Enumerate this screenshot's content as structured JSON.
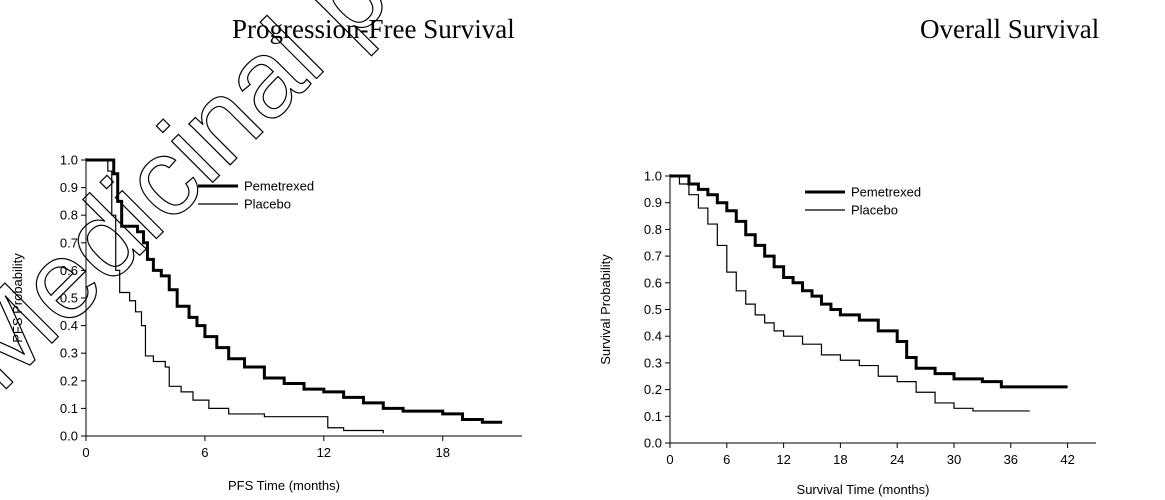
{
  "chart_data": [
    {
      "type": "line",
      "title": "Progression-Free Survival",
      "xlabel": "PFS Time (months)",
      "ylabel": "PFS Probability",
      "xlim": [
        0,
        22
      ],
      "ylim": [
        0,
        1
      ],
      "xticks": [
        0,
        6,
        12,
        18
      ],
      "yticks": [
        0.0,
        0.1,
        0.2,
        0.3,
        0.4,
        0.5,
        0.6,
        0.7,
        0.8,
        0.9,
        1.0
      ],
      "grid": false,
      "legend_position": "top-right",
      "series": [
        {
          "name": "Pemetrexed",
          "points": [
            [
              0,
              1.0
            ],
            [
              1.2,
              1.0
            ],
            [
              1.4,
              0.95
            ],
            [
              1.6,
              0.85
            ],
            [
              1.8,
              0.76
            ],
            [
              2.0,
              0.76
            ],
            [
              2.6,
              0.74
            ],
            [
              2.9,
              0.7
            ],
            [
              3.1,
              0.64
            ],
            [
              3.4,
              0.6
            ],
            [
              3.8,
              0.58
            ],
            [
              4.2,
              0.53
            ],
            [
              4.6,
              0.47
            ],
            [
              5.2,
              0.43
            ],
            [
              5.6,
              0.4
            ],
            [
              6.0,
              0.36
            ],
            [
              6.6,
              0.32
            ],
            [
              7.2,
              0.28
            ],
            [
              8.0,
              0.25
            ],
            [
              9.0,
              0.21
            ],
            [
              10.0,
              0.19
            ],
            [
              11.0,
              0.17
            ],
            [
              12.0,
              0.16
            ],
            [
              13.0,
              0.14
            ],
            [
              14.0,
              0.12
            ],
            [
              15.0,
              0.1
            ],
            [
              16.0,
              0.09
            ],
            [
              18.0,
              0.08
            ],
            [
              19.0,
              0.06
            ],
            [
              20.0,
              0.05
            ],
            [
              21.0,
              0.05
            ]
          ]
        },
        {
          "name": "Placebo",
          "points": [
            [
              0,
              1.0
            ],
            [
              1.1,
              0.96
            ],
            [
              1.3,
              0.8
            ],
            [
              1.5,
              0.6
            ],
            [
              1.7,
              0.52
            ],
            [
              2.2,
              0.49
            ],
            [
              2.5,
              0.45
            ],
            [
              2.8,
              0.4
            ],
            [
              3.0,
              0.29
            ],
            [
              3.4,
              0.27
            ],
            [
              4.0,
              0.25
            ],
            [
              4.2,
              0.18
            ],
            [
              4.8,
              0.16
            ],
            [
              5.4,
              0.13
            ],
            [
              6.2,
              0.1
            ],
            [
              7.2,
              0.08
            ],
            [
              9.0,
              0.07
            ],
            [
              12.0,
              0.07
            ],
            [
              12.2,
              0.03
            ],
            [
              13.0,
              0.02
            ],
            [
              15.0,
              0.01
            ]
          ]
        }
      ]
    },
    {
      "type": "line",
      "title": "Overall Survival",
      "xlabel": "Survival Time (months)",
      "ylabel": "Survival Probability",
      "xlim": [
        0,
        45
      ],
      "ylim": [
        0,
        1
      ],
      "xticks": [
        0,
        6,
        12,
        18,
        24,
        30,
        36,
        42
      ],
      "yticks": [
        0.0,
        0.1,
        0.2,
        0.3,
        0.4,
        0.5,
        0.6,
        0.7,
        0.8,
        0.9,
        1.0
      ],
      "grid": false,
      "legend_position": "top-right",
      "series": [
        {
          "name": "Pemetrexed",
          "points": [
            [
              0,
              1.0
            ],
            [
              1,
              1.0
            ],
            [
              2,
              0.97
            ],
            [
              3,
              0.95
            ],
            [
              4,
              0.93
            ],
            [
              5,
              0.9
            ],
            [
              6,
              0.87
            ],
            [
              7,
              0.83
            ],
            [
              8,
              0.78
            ],
            [
              9,
              0.74
            ],
            [
              10,
              0.7
            ],
            [
              11,
              0.66
            ],
            [
              12,
              0.62
            ],
            [
              13,
              0.6
            ],
            [
              14,
              0.57
            ],
            [
              15,
              0.55
            ],
            [
              16,
              0.52
            ],
            [
              17,
              0.5
            ],
            [
              18,
              0.48
            ],
            [
              20,
              0.46
            ],
            [
              22,
              0.42
            ],
            [
              24,
              0.38
            ],
            [
              25,
              0.32
            ],
            [
              26,
              0.28
            ],
            [
              28,
              0.26
            ],
            [
              30,
              0.24
            ],
            [
              33,
              0.23
            ],
            [
              35,
              0.21
            ],
            [
              38,
              0.21
            ],
            [
              42,
              0.21
            ]
          ]
        },
        {
          "name": "Placebo",
          "points": [
            [
              0,
              1.0
            ],
            [
              1,
              0.97
            ],
            [
              2,
              0.93
            ],
            [
              3,
              0.88
            ],
            [
              4,
              0.82
            ],
            [
              5,
              0.74
            ],
            [
              6,
              0.64
            ],
            [
              7,
              0.57
            ],
            [
              8,
              0.52
            ],
            [
              9,
              0.48
            ],
            [
              10,
              0.45
            ],
            [
              11,
              0.42
            ],
            [
              12,
              0.4
            ],
            [
              14,
              0.37
            ],
            [
              16,
              0.33
            ],
            [
              18,
              0.31
            ],
            [
              20,
              0.29
            ],
            [
              22,
              0.25
            ],
            [
              24,
              0.23
            ],
            [
              26,
              0.19
            ],
            [
              28,
              0.15
            ],
            [
              30,
              0.13
            ],
            [
              32,
              0.12
            ],
            [
              35,
              0.12
            ],
            [
              38,
              0.12
            ]
          ]
        }
      ]
    }
  ],
  "watermark": "Medicinal product"
}
